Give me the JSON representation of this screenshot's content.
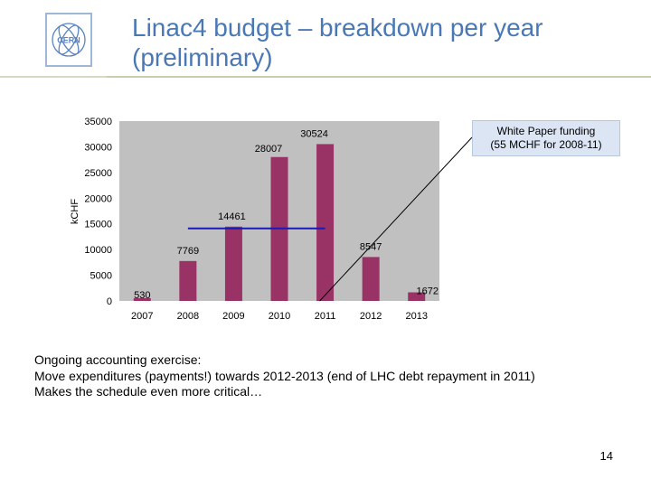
{
  "slide": {
    "title_line1": "Linac4 budget – breakdown per year",
    "title_line2": "(preliminary)",
    "logo_text": "CERN",
    "callout_line1": "White Paper funding",
    "callout_line2": "(55 MCHF for 2008-11)",
    "body_lines": [
      "Ongoing accounting exercise:",
      "Move expenditures (payments!) towards 2012-2013 (end of LHC debt repayment in 2011)",
      "Makes the schedule even more critical…"
    ],
    "page_number": "14"
  },
  "colors": {
    "title": "#4a78b5",
    "bar": "#993366",
    "plot_background": "#c0c0c0",
    "reference_line": "#1a1ab8",
    "callout_fill": "#dbe5f4"
  },
  "chart_data": {
    "type": "bar",
    "categories": [
      "2007",
      "2008",
      "2009",
      "2010",
      "2011",
      "2012",
      "2013"
    ],
    "values": [
      530,
      7769,
      14461,
      28007,
      30524,
      8547,
      1672
    ],
    "data_labels": [
      "530",
      "7769",
      "14461",
      "28007",
      "30524",
      "8547",
      "1672"
    ],
    "ylabel": "kCHF",
    "ylim": [
      0,
      35000
    ],
    "yticks": [
      0,
      5000,
      10000,
      15000,
      20000,
      25000,
      30000,
      35000
    ],
    "grid": false,
    "reference_line": {
      "y": 14461,
      "from": "2008",
      "to": "2011"
    },
    "callout_arrow_to": {
      "x": "2011",
      "y": 0
    }
  }
}
